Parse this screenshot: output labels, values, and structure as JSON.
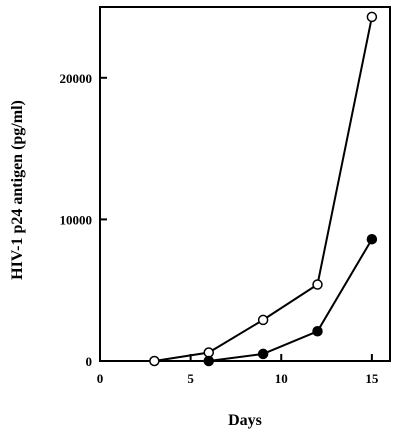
{
  "chart_data": {
    "type": "line",
    "title": "",
    "xlabel": "Days",
    "ylabel": "HIV-1 p24 antigen (pg/ml)",
    "xlim": [
      0,
      16
    ],
    "ylim": [
      0,
      25000
    ],
    "x_ticks": [
      0,
      5,
      10,
      15
    ],
    "y_ticks": [
      0,
      10000,
      20000
    ],
    "grid": false,
    "legend": "none",
    "series": [
      {
        "marker": "open-circle",
        "x": [
          3,
          6,
          9,
          12,
          15
        ],
        "y": [
          0,
          600,
          2900,
          5400,
          24300
        ]
      },
      {
        "marker": "filled-circle",
        "x": [
          6,
          9,
          12,
          15
        ],
        "y": [
          0,
          500,
          2100,
          8600
        ]
      }
    ]
  }
}
